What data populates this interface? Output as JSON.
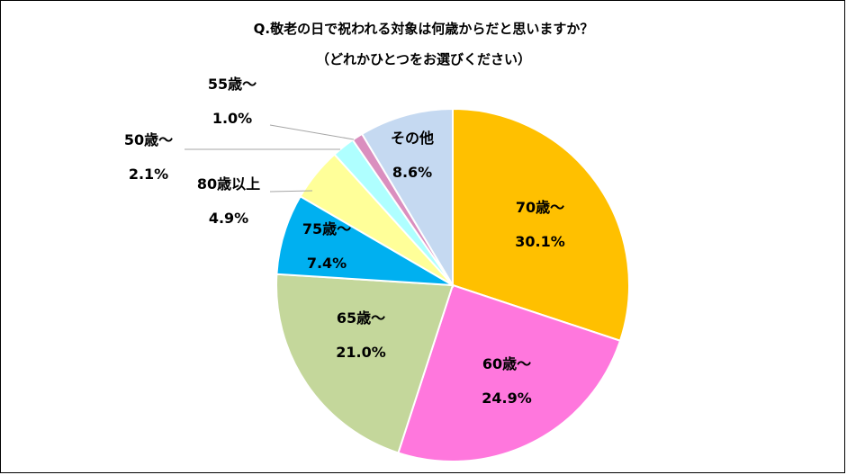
{
  "chart_data": {
    "type": "pie",
    "title": "Q.敬老の日で祝われる対象は何歳からだと思いますか？",
    "subtitle": "（どれかひとつをお選びください）",
    "slices": [
      {
        "name": "70歳～",
        "value": 30.1,
        "pct_label": "30.1%",
        "color": "#FFC000"
      },
      {
        "name": "60歳～",
        "value": 24.9,
        "pct_label": "24.9%",
        "color": "#FF77DD"
      },
      {
        "name": "65歳～",
        "value": 21.0,
        "pct_label": "21.0%",
        "color": "#C4D79B"
      },
      {
        "name": "75歳～",
        "value": 7.4,
        "pct_label": "7.4%",
        "color": "#00B0F0"
      },
      {
        "name": "80歳以上",
        "value": 4.9,
        "pct_label": "4.9%",
        "color": "#FFFF99"
      },
      {
        "name": "50歳～",
        "value": 2.1,
        "pct_label": "2.1%",
        "color": "#AFFFFF"
      },
      {
        "name": "55歳～",
        "value": 1.0,
        "pct_label": "1.0%",
        "color": "#DA8FBF"
      },
      {
        "name": "その他",
        "value": 8.6,
        "pct_label": "8.6%",
        "color": "#C5D9F1"
      }
    ]
  }
}
